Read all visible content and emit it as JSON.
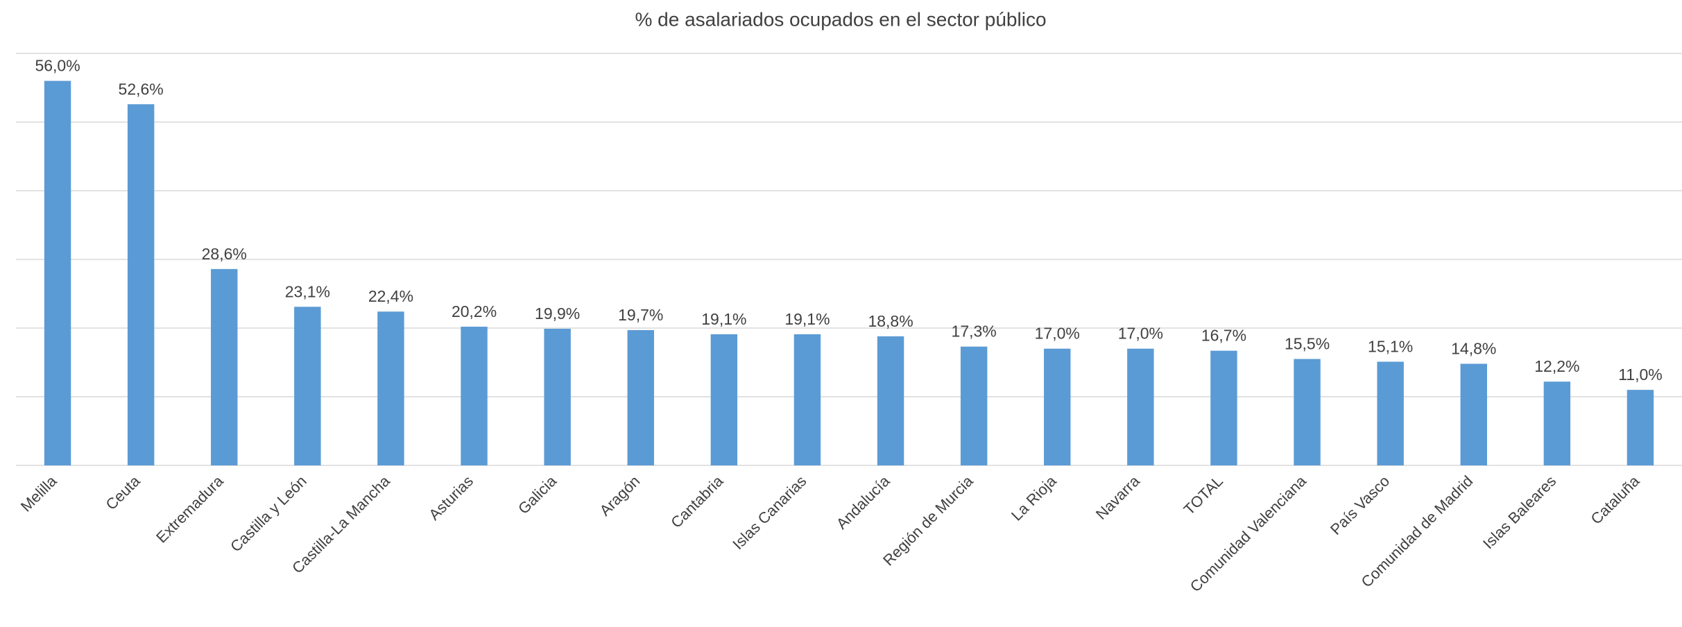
{
  "chart_data": {
    "type": "bar",
    "title": "% de asalariados ocupados en el sector público",
    "categories": [
      "Melilla",
      "Ceuta",
      "Extremadura",
      "Castilla y León",
      "Castilla-La Mancha",
      "Asturias",
      "Galicia",
      "Aragón",
      "Cantabria",
      "Islas Canarias",
      "Andalucía",
      "Región de Murcia",
      "La Rioja",
      "Navarra",
      "TOTAL",
      "Comunidad Valenciana",
      "País Vasco",
      "Comunidad de Madrid",
      "Islas Baleares",
      "Cataluña"
    ],
    "values": [
      56.0,
      52.6,
      28.6,
      23.1,
      22.4,
      20.2,
      19.9,
      19.7,
      19.1,
      19.1,
      18.8,
      17.3,
      17.0,
      17.0,
      16.7,
      15.5,
      15.1,
      14.8,
      12.2,
      11.0
    ],
    "value_labels": [
      "56,0%",
      "52,6%",
      "28,6%",
      "23,1%",
      "22,4%",
      "20,2%",
      "19,9%",
      "19,7%",
      "19,1%",
      "19,1%",
      "18,8%",
      "17,3%",
      "17,0%",
      "17,0%",
      "16,7%",
      "15,5%",
      "15,1%",
      "14,8%",
      "12,2%",
      "11,0%"
    ],
    "color": "#5b9bd5",
    "ylim": [
      0,
      60
    ],
    "yticks": [
      0,
      10,
      20,
      30,
      40,
      50,
      60
    ],
    "grid": true
  }
}
